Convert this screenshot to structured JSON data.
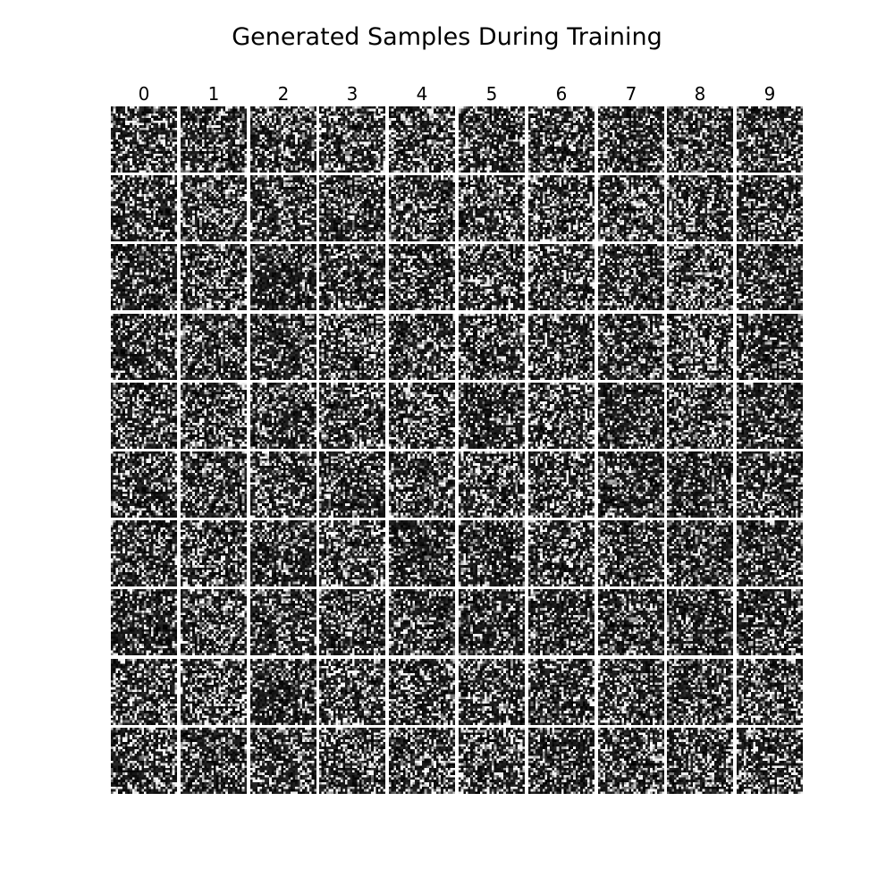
{
  "figure": {
    "title": "Generated Samples During Training",
    "column_labels": [
      "0",
      "1",
      "2",
      "3",
      "4",
      "5",
      "6",
      "7",
      "8",
      "9"
    ],
    "rows": 10,
    "columns": 10,
    "cell_type": "noise-sample-image",
    "colormap": "grayscale"
  }
}
